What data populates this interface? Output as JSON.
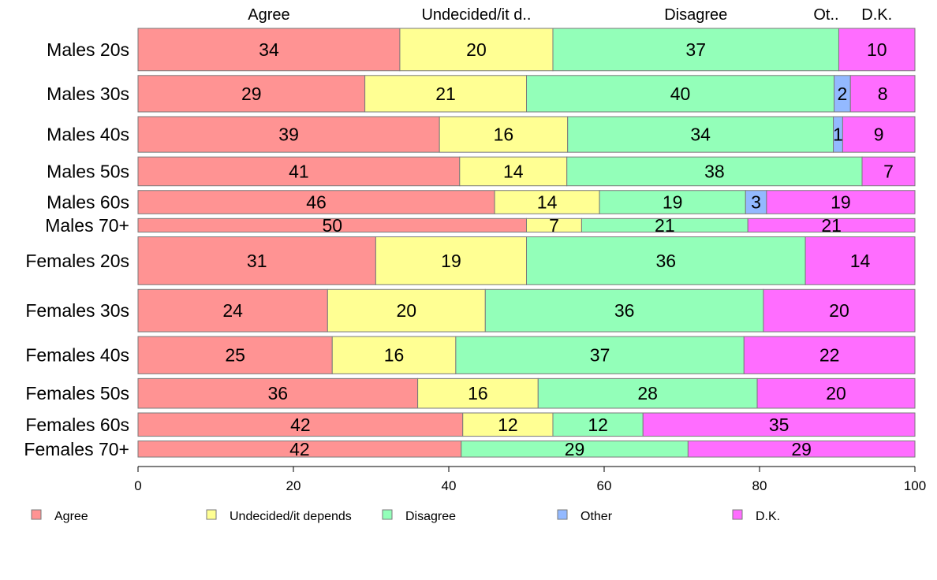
{
  "chart_data": {
    "type": "bar",
    "orientation": "horizontal",
    "stacked": true,
    "xlim": [
      0,
      100
    ],
    "xticks": [
      0,
      20,
      40,
      60,
      80,
      100
    ],
    "grid": false,
    "legend_position": "bottom",
    "column_headers": [
      "Agree",
      "Undecided/it d..",
      "Disagree",
      "Ot..",
      "D.K."
    ],
    "categories": [
      "Males 20s",
      "Males 30s",
      "Males 40s",
      "Males 50s",
      "Males 60s",
      "Males 70+",
      "Females 20s",
      "Females 30s",
      "Females 40s",
      "Females 50s",
      "Females 60s",
      "Females 70+"
    ],
    "series": [
      {
        "name": "Agree",
        "color": "#ff9393",
        "values": [
          33.7,
          29.2,
          38.8,
          41.4,
          45.9,
          50.0,
          30.6,
          24.4,
          25.0,
          36.0,
          41.8,
          41.6
        ],
        "labels": [
          "34",
          "29",
          "39",
          "41",
          "46",
          "50",
          "31",
          "24",
          "25",
          "36",
          "42",
          "42"
        ]
      },
      {
        "name": "Undecided/it depends",
        "color": "#ffff93",
        "values": [
          19.7,
          20.8,
          16.5,
          13.8,
          13.5,
          7.1,
          19.4,
          20.3,
          15.9,
          15.5,
          11.6,
          0
        ],
        "labels": [
          "20",
          "21",
          "16",
          "14",
          "14",
          "7",
          "19",
          "20",
          "16",
          "16",
          "12",
          ""
        ]
      },
      {
        "name": "Disagree",
        "color": "#93ffb9",
        "values": [
          36.8,
          39.6,
          34.2,
          38.0,
          18.8,
          21.4,
          35.9,
          35.8,
          37.1,
          28.2,
          11.6,
          29.2
        ],
        "labels": [
          "37",
          "40",
          "34",
          "38",
          "19",
          "21",
          "36",
          "36",
          "37",
          "28",
          "12",
          "29"
        ]
      },
      {
        "name": "Other",
        "color": "#93b9ff",
        "values": [
          0,
          2.1,
          1.2,
          0,
          2.7,
          0,
          0,
          0,
          0,
          0,
          0,
          0
        ],
        "labels": [
          "",
          "2",
          "1",
          "",
          "3",
          "",
          "",
          "",
          "",
          "",
          "",
          ""
        ]
      },
      {
        "name": "D.K.",
        "color": "#ff6dff",
        "values": [
          9.8,
          8.3,
          9.3,
          6.8,
          19.1,
          21.5,
          14.1,
          19.5,
          22.0,
          20.3,
          35.0,
          29.2
        ],
        "labels": [
          "10",
          "8",
          "9",
          "7",
          "19",
          "21",
          "14",
          "20",
          "22",
          "20",
          "35",
          "29"
        ]
      }
    ],
    "row_weights": [
      1.0,
      0.86,
      0.84,
      0.68,
      0.55,
      0.32,
      1.13,
      1.0,
      0.88,
      0.7,
      0.55,
      0.38
    ]
  }
}
